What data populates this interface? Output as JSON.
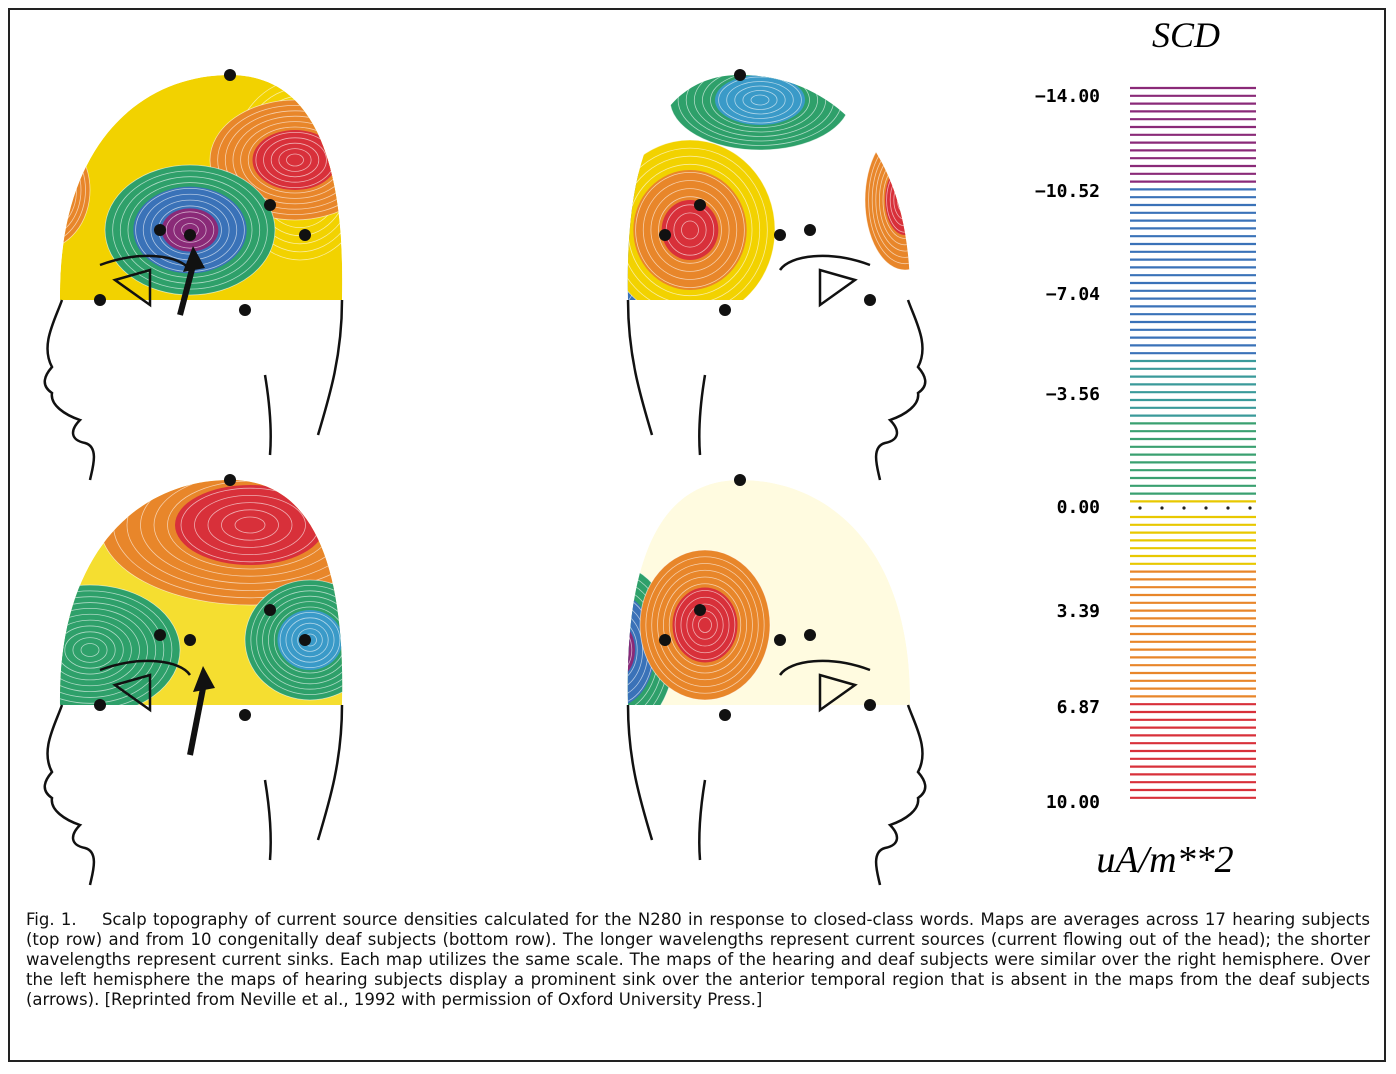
{
  "figure": {
    "colorbar": {
      "title": "SCD",
      "ticks": [
        "−14.00",
        "−10.52",
        "−7.04",
        "−3.56",
        "0.00",
        "3.39",
        "6.87",
        "10.00"
      ],
      "unit": "uA/m**2"
    },
    "caption": "Fig. 1.    Scalp topography of current source densities calculated for the N280 in response to closed-class words. Maps are averages across 17 hearing subjects (top row) and from 10 congenitally deaf subjects (bottom row). The longer wavelengths represent current sources (current flowing out of the head); the shorter wavelengths represent current sinks. Each map utilizes the same scale. The maps of the hearing and deaf subjects were similar over the right hemisphere. Over the left hemisphere the maps of hearing subjects display a prominent sink over the anterior temporal region that is absent in the maps from the deaf subjects (arrows). [Reprinted from Neville et al., 1992 with permission of Oxford University Press.]"
  }
}
